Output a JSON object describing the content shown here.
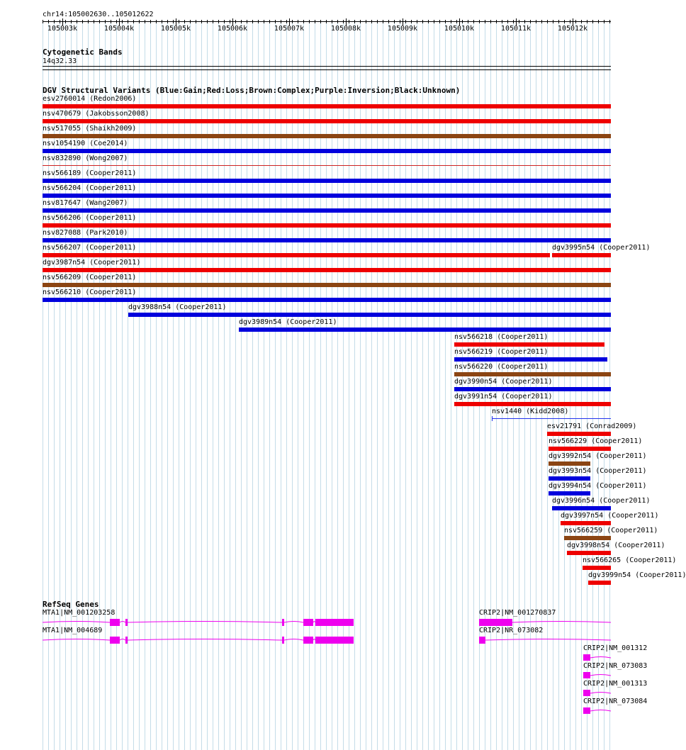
{
  "ruler": {
    "region": "chr14:105002630..105012622",
    "ticks": [
      "105003k",
      "105004k",
      "105005k",
      "105006k",
      "105007k",
      "105008k",
      "105009k",
      "105010k",
      "105011k",
      "105012k"
    ]
  },
  "cytoband": {
    "title": "Cytogenetic Bands",
    "band": "14q32.33"
  },
  "dgv": {
    "title": "DGV Structural Variants (Blue:Gain;Red:Loss;Brown:Complex;Purple:Inversion;Black:Unknown)",
    "colors": {
      "gain": "#0000dd",
      "loss": "#ee0000",
      "complex": "#8b4513",
      "blue_thin": "#2233ee",
      "red_thin": "#cc2222"
    },
    "features": [
      {
        "label": "esv2760014 (Redon2006)",
        "type": "loss"
      },
      {
        "label": "nsv470679 (Jakobsson2008)",
        "type": "loss"
      },
      {
        "label": "nsv517055 (Shaikh2009)",
        "type": "complex"
      },
      {
        "label": "nsv1054190 (Coe2014)",
        "type": "gain"
      },
      {
        "label": "nsv832890 (Wong2007)",
        "type": "loss"
      },
      {
        "label": "nsv566189 (Cooper2011)",
        "type": "gain"
      },
      {
        "label": "nsv566204 (Cooper2011)",
        "type": "gain"
      },
      {
        "label": "nsv817647 (Wang2007)",
        "type": "gain"
      },
      {
        "label": "nsv566206 (Cooper2011)",
        "type": "loss"
      },
      {
        "label": "nsv827088 (Park2010)",
        "type": "gain"
      },
      {
        "label": "nsv566207 (Cooper2011)",
        "type": "loss"
      },
      {
        "label": "dgv3995n54 (Cooper2011)",
        "type": "loss"
      },
      {
        "label": "dgv3987n54 (Cooper2011)",
        "type": "loss"
      },
      {
        "label": "nsv566209 (Cooper2011)",
        "type": "complex"
      },
      {
        "label": "nsv566210 (Cooper2011)",
        "type": "gain"
      },
      {
        "label": "dgv3988n54 (Cooper2011)",
        "type": "gain"
      },
      {
        "label": "dgv3989n54 (Cooper2011)",
        "type": "gain"
      },
      {
        "label": "nsv566218 (Cooper2011)",
        "type": "loss"
      },
      {
        "label": "nsv566219 (Cooper2011)",
        "type": "gain"
      },
      {
        "label": "nsv566220 (Cooper2011)",
        "type": "complex"
      },
      {
        "label": "dgv3990n54 (Cooper2011)",
        "type": "gain"
      },
      {
        "label": "dgv3991n54 (Cooper2011)",
        "type": "loss"
      },
      {
        "label": "nsv1440 (Kidd2008)",
        "type": "gain"
      },
      {
        "label": "esv21791 (Conrad2009)",
        "type": "loss"
      },
      {
        "label": "nsv566229 (Cooper2011)",
        "type": "loss"
      },
      {
        "label": "dgv3992n54 (Cooper2011)",
        "type": "complex"
      },
      {
        "label": "dgv3993n54 (Cooper2011)",
        "type": "gain"
      },
      {
        "label": "dgv3994n54 (Cooper2011)",
        "type": "gain"
      },
      {
        "label": "dgv3996n54 (Cooper2011)",
        "type": "gain"
      },
      {
        "label": "dgv3997n54 (Cooper2011)",
        "type": "loss"
      },
      {
        "label": "nsv566259 (Cooper2011)",
        "type": "complex"
      },
      {
        "label": "dgv3998n54 (Cooper2011)",
        "type": "loss"
      },
      {
        "label": "nsv566265 (Cooper2011)",
        "type": "loss"
      },
      {
        "label": "dgv3999n54 (Cooper2011)",
        "type": "loss"
      }
    ]
  },
  "refseq": {
    "title": "RefSeq Genes",
    "color": "#ee00ee",
    "genes": [
      {
        "label": "MTA1|NM_001203258"
      },
      {
        "label": "MTA1|NM_004689"
      },
      {
        "label": "CRIP2|NM_001270837"
      },
      {
        "label": "CRIP2|NR_073082"
      },
      {
        "label": "CRIP2|NM_001312"
      },
      {
        "label": "CRIP2|NR_073083"
      },
      {
        "label": "CRIP2|NM_001313"
      },
      {
        "label": "CRIP2|NR_073084"
      }
    ]
  }
}
